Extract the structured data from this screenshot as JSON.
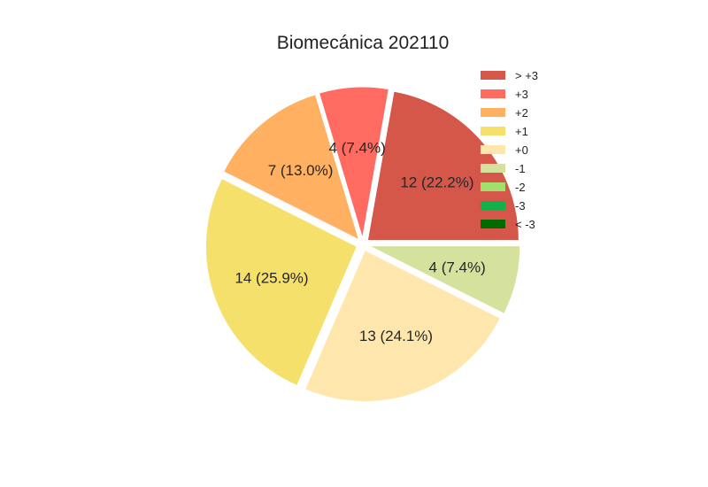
{
  "chart_data": {
    "type": "pie",
    "title": "Biomecánica 202110",
    "slices": [
      {
        "name": "> +3",
        "value": 12,
        "label": "12 (22.2%)",
        "color": "#d4574a"
      },
      {
        "name": "+3",
        "value": 4,
        "label": "4 (7.4%)",
        "color": "#ff6b61"
      },
      {
        "name": "+2",
        "value": 7,
        "label": "7 (13.0%)",
        "color": "#ffb061"
      },
      {
        "name": "+1",
        "value": 14,
        "label": "14 (25.9%)",
        "color": "#f6e06c"
      },
      {
        "name": "+0",
        "value": 13,
        "label": "13 (24.1%)",
        "color": "#ffe6ad"
      },
      {
        "name": "-1",
        "value": 4,
        "label": "4 (7.4%)",
        "color": "#d4e29d"
      },
      {
        "name": "-2",
        "value": 0,
        "label": "",
        "color": "#a3e06b"
      },
      {
        "name": "-3",
        "value": 0,
        "label": "",
        "color": "#10b04a"
      },
      {
        "name": "< -3",
        "value": 0,
        "label": "",
        "color": "#006b00"
      }
    ],
    "legend_placement": "top-right"
  }
}
